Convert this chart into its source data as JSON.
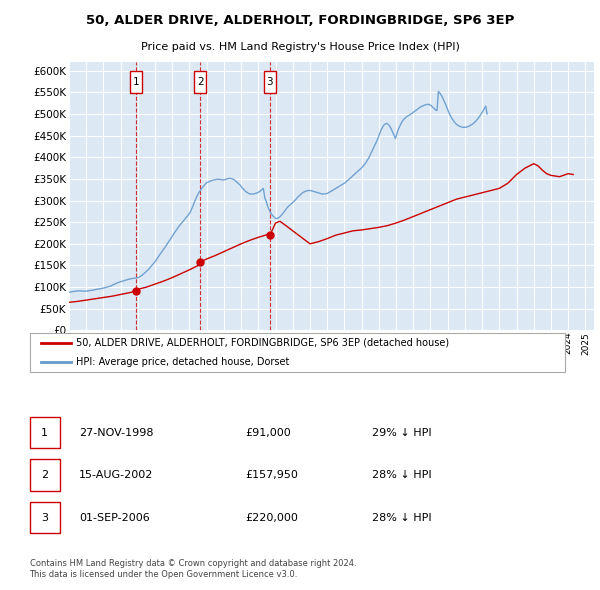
{
  "title": "50, ALDER DRIVE, ALDERHOLT, FORDINGBRIDGE, SP6 3EP",
  "subtitle": "Price paid vs. HM Land Registry's House Price Index (HPI)",
  "plot_bg_color": "#dce9f5",
  "grid_color": "#ffffff",
  "ylim": [
    0,
    620000
  ],
  "yticks": [
    0,
    50000,
    100000,
    150000,
    200000,
    250000,
    300000,
    350000,
    400000,
    450000,
    500000,
    550000,
    600000
  ],
  "hpi_x": [
    1995.04,
    1995.12,
    1995.21,
    1995.29,
    1995.38,
    1995.46,
    1995.54,
    1995.63,
    1995.71,
    1995.79,
    1995.88,
    1995.96,
    1996.04,
    1996.12,
    1996.21,
    1996.29,
    1996.38,
    1996.46,
    1996.54,
    1996.63,
    1996.71,
    1996.79,
    1996.88,
    1996.96,
    1997.04,
    1997.12,
    1997.21,
    1997.29,
    1997.38,
    1997.46,
    1997.54,
    1997.63,
    1997.71,
    1997.79,
    1997.88,
    1997.96,
    1998.04,
    1998.12,
    1998.21,
    1998.29,
    1998.38,
    1998.46,
    1998.54,
    1998.63,
    1998.71,
    1998.79,
    1998.88,
    1998.96,
    1999.04,
    1999.12,
    1999.21,
    1999.29,
    1999.38,
    1999.46,
    1999.54,
    1999.63,
    1999.71,
    1999.79,
    1999.88,
    1999.96,
    2000.04,
    2000.12,
    2000.21,
    2000.29,
    2000.38,
    2000.46,
    2000.54,
    2000.63,
    2000.71,
    2000.79,
    2000.88,
    2000.96,
    2001.04,
    2001.12,
    2001.21,
    2001.29,
    2001.38,
    2001.46,
    2001.54,
    2001.63,
    2001.71,
    2001.79,
    2001.88,
    2001.96,
    2002.04,
    2002.12,
    2002.21,
    2002.29,
    2002.38,
    2002.46,
    2002.54,
    2002.63,
    2002.71,
    2002.79,
    2002.88,
    2002.96,
    2003.04,
    2003.12,
    2003.21,
    2003.29,
    2003.38,
    2003.46,
    2003.54,
    2003.63,
    2003.71,
    2003.79,
    2003.88,
    2003.96,
    2004.04,
    2004.12,
    2004.21,
    2004.29,
    2004.38,
    2004.46,
    2004.54,
    2004.63,
    2004.71,
    2004.79,
    2004.88,
    2004.96,
    2005.04,
    2005.12,
    2005.21,
    2005.29,
    2005.38,
    2005.46,
    2005.54,
    2005.63,
    2005.71,
    2005.79,
    2005.88,
    2005.96,
    2006.04,
    2006.12,
    2006.21,
    2006.29,
    2006.38,
    2006.46,
    2006.54,
    2006.63,
    2006.71,
    2006.79,
    2006.88,
    2006.96,
    2007.04,
    2007.12,
    2007.21,
    2007.29,
    2007.38,
    2007.46,
    2007.54,
    2007.63,
    2007.71,
    2007.79,
    2007.88,
    2007.96,
    2008.04,
    2008.12,
    2008.21,
    2008.29,
    2008.38,
    2008.46,
    2008.54,
    2008.63,
    2008.71,
    2008.79,
    2008.88,
    2008.96,
    2009.04,
    2009.12,
    2009.21,
    2009.29,
    2009.38,
    2009.46,
    2009.54,
    2009.63,
    2009.71,
    2009.79,
    2009.88,
    2009.96,
    2010.04,
    2010.12,
    2010.21,
    2010.29,
    2010.38,
    2010.46,
    2010.54,
    2010.63,
    2010.71,
    2010.79,
    2010.88,
    2010.96,
    2011.04,
    2011.12,
    2011.21,
    2011.29,
    2011.38,
    2011.46,
    2011.54,
    2011.63,
    2011.71,
    2011.79,
    2011.88,
    2011.96,
    2012.04,
    2012.12,
    2012.21,
    2012.29,
    2012.38,
    2012.46,
    2012.54,
    2012.63,
    2012.71,
    2012.79,
    2012.88,
    2012.96,
    2013.04,
    2013.12,
    2013.21,
    2013.29,
    2013.38,
    2013.46,
    2013.54,
    2013.63,
    2013.71,
    2013.79,
    2013.88,
    2013.96,
    2014.04,
    2014.12,
    2014.21,
    2014.29,
    2014.38,
    2014.46,
    2014.54,
    2014.63,
    2014.71,
    2014.79,
    2014.88,
    2014.96,
    2015.04,
    2015.12,
    2015.21,
    2015.29,
    2015.38,
    2015.46,
    2015.54,
    2015.63,
    2015.71,
    2015.79,
    2015.88,
    2015.96,
    2016.04,
    2016.12,
    2016.21,
    2016.29,
    2016.38,
    2016.46,
    2016.54,
    2016.63,
    2016.71,
    2016.79,
    2016.88,
    2016.96,
    2017.04,
    2017.12,
    2017.21,
    2017.29,
    2017.38,
    2017.46,
    2017.54,
    2017.63,
    2017.71,
    2017.79,
    2017.88,
    2017.96,
    2018.04,
    2018.12,
    2018.21,
    2018.29,
    2018.38,
    2018.46,
    2018.54,
    2018.63,
    2018.71,
    2018.79,
    2018.88,
    2018.96,
    2019.04,
    2019.12,
    2019.21,
    2019.29,
    2019.38,
    2019.46,
    2019.54,
    2019.63,
    2019.71,
    2019.79,
    2019.88,
    2019.96,
    2020.04,
    2020.12,
    2020.21,
    2020.29,
    2020.38,
    2020.46,
    2020.54,
    2020.63,
    2020.71,
    2020.79,
    2020.88,
    2020.96,
    2021.04,
    2021.12,
    2021.21,
    2021.29,
    2021.38,
    2021.46,
    2021.54,
    2021.63,
    2021.71,
    2021.79,
    2021.88,
    2021.96,
    2022.04,
    2022.12,
    2022.21,
    2022.29,
    2022.38,
    2022.46,
    2022.54,
    2022.63,
    2022.71,
    2022.79,
    2022.88,
    2022.96,
    2023.04,
    2023.12,
    2023.21,
    2023.29,
    2023.38,
    2023.46,
    2023.54,
    2023.63,
    2023.71,
    2023.79,
    2023.88,
    2023.96,
    2024.04,
    2024.12,
    2024.21,
    2024.29
  ],
  "hpi_y": [
    88000,
    89000,
    89500,
    90000,
    90500,
    91000,
    91000,
    91500,
    91000,
    91000,
    90500,
    90500,
    91000,
    91500,
    92000,
    92500,
    93000,
    93500,
    94500,
    95000,
    95500,
    96000,
    97000,
    97500,
    98000,
    99000,
    100000,
    101000,
    102000,
    103000,
    105000,
    106500,
    108000,
    109500,
    111000,
    112000,
    113000,
    114000,
    115000,
    116000,
    117000,
    118000,
    119000,
    119500,
    120000,
    120500,
    121000,
    121500,
    122000,
    124000,
    126500,
    129000,
    132000,
    135000,
    138000,
    141000,
    145000,
    149000,
    153000,
    157000,
    161000,
    166000,
    171000,
    176000,
    181000,
    185000,
    190000,
    195000,
    200000,
    205000,
    210000,
    215000,
    220000,
    225000,
    230000,
    235000,
    240000,
    244000,
    248000,
    252000,
    256000,
    260000,
    264000,
    268000,
    273000,
    280000,
    288000,
    297000,
    305000,
    312000,
    318000,
    323000,
    328000,
    332000,
    336000,
    340000,
    342000,
    343000,
    345000,
    346000,
    347000,
    348000,
    348500,
    349000,
    349000,
    348500,
    348000,
    347500,
    348000,
    349000,
    350000,
    351000,
    351000,
    350000,
    349000,
    347000,
    344000,
    341000,
    338000,
    335000,
    330000,
    327000,
    323000,
    320000,
    318000,
    316000,
    315000,
    315000,
    315000,
    316000,
    317000,
    318000,
    320000,
    322000,
    325000,
    328000,
    305000,
    298000,
    287000,
    278000,
    272000,
    267000,
    263000,
    260000,
    258000,
    259000,
    261000,
    264000,
    268000,
    272000,
    276000,
    281000,
    285000,
    288000,
    291000,
    294000,
    297000,
    300000,
    304000,
    308000,
    311000,
    314000,
    317000,
    319000,
    321000,
    322000,
    323000,
    323000,
    323000,
    322000,
    321000,
    320000,
    319000,
    318000,
    317000,
    316000,
    315000,
    315000,
    315500,
    316000,
    317000,
    319000,
    321000,
    323000,
    325000,
    327000,
    329000,
    331000,
    333000,
    335000,
    337000,
    339000,
    341000,
    344000,
    347000,
    350000,
    353000,
    356000,
    359000,
    362000,
    365000,
    368000,
    371000,
    374000,
    377000,
    381000,
    385000,
    390000,
    396000,
    402000,
    409000,
    416000,
    423000,
    430000,
    437000,
    445000,
    454000,
    462000,
    469000,
    474000,
    477000,
    478000,
    476000,
    472000,
    466000,
    459000,
    451000,
    443000,
    453000,
    463000,
    471000,
    478000,
    484000,
    488000,
    491000,
    494000,
    496000,
    498000,
    500000,
    502000,
    505000,
    507000,
    510000,
    512000,
    515000,
    517000,
    518000,
    520000,
    521000,
    522000,
    522000,
    521000,
    519000,
    516000,
    513000,
    509000,
    508000,
    552000,
    548000,
    543000,
    537000,
    530000,
    522000,
    514000,
    506000,
    499000,
    492000,
    487000,
    482000,
    478000,
    475000,
    473000,
    471000,
    470000,
    469000,
    469000,
    469000,
    470000,
    471000,
    473000,
    475000,
    477000,
    480000,
    483000,
    487000,
    491000,
    496000,
    501000,
    506000,
    512000,
    518000,
    500000
  ],
  "red_line_x": [
    1995.04,
    1995.5,
    1996.0,
    1996.5,
    1997.0,
    1997.5,
    1998.0,
    1998.5,
    1998.91,
    1999.0,
    1999.5,
    2000.0,
    2000.5,
    2001.0,
    2001.5,
    2002.0,
    2002.5,
    2002.62,
    2003.0,
    2003.5,
    2004.0,
    2004.5,
    2005.0,
    2005.5,
    2006.0,
    2006.5,
    2006.67,
    2007.0,
    2007.25,
    2007.5,
    2008.0,
    2008.5,
    2009.0,
    2009.5,
    2010.0,
    2010.5,
    2011.0,
    2011.5,
    2012.0,
    2012.5,
    2013.0,
    2013.5,
    2014.0,
    2014.5,
    2015.0,
    2015.5,
    2016.0,
    2016.5,
    2017.0,
    2017.5,
    2018.0,
    2018.5,
    2019.0,
    2019.5,
    2020.0,
    2020.5,
    2021.0,
    2021.5,
    2022.0,
    2022.25,
    2022.5,
    2022.75,
    2023.0,
    2023.5,
    2024.0,
    2024.29
  ],
  "red_line_y": [
    65000,
    67000,
    70000,
    73000,
    76000,
    79000,
    83000,
    87000,
    91000,
    95000,
    100000,
    107000,
    114000,
    122000,
    131000,
    140000,
    150000,
    157950,
    165000,
    173000,
    182000,
    191000,
    200000,
    208000,
    215000,
    221000,
    220000,
    248000,
    252000,
    245000,
    230000,
    215000,
    200000,
    205000,
    212000,
    220000,
    225000,
    230000,
    232000,
    235000,
    238000,
    242000,
    248000,
    255000,
    263000,
    271000,
    279000,
    287000,
    295000,
    303000,
    308000,
    313000,
    318000,
    323000,
    328000,
    340000,
    360000,
    375000,
    385000,
    380000,
    370000,
    362000,
    358000,
    355000,
    362000,
    360000
  ],
  "purchases": [
    {
      "year": 1998.91,
      "price": 91000,
      "label": "1"
    },
    {
      "year": 2002.62,
      "price": 157950,
      "label": "2"
    },
    {
      "year": 2006.67,
      "price": 220000,
      "label": "3"
    }
  ],
  "purchase_color": "#cc0000",
  "hpi_color": "#6699cc",
  "vline_color": "#cc0000",
  "legend_label_red": "50, ALDER DRIVE, ALDERHOLT, FORDINGBRIDGE, SP6 3EP (detached house)",
  "legend_label_blue": "HPI: Average price, detached house, Dorset",
  "table_data": [
    [
      "1",
      "27-NOV-1998",
      "£91,000",
      "29% ↓ HPI"
    ],
    [
      "2",
      "15-AUG-2002",
      "£157,950",
      "28% ↓ HPI"
    ],
    [
      "3",
      "01-SEP-2006",
      "£220,000",
      "28% ↓ HPI"
    ]
  ],
  "footer_text": "Contains HM Land Registry data © Crown copyright and database right 2024.\nThis data is licensed under the Open Government Licence v3.0."
}
